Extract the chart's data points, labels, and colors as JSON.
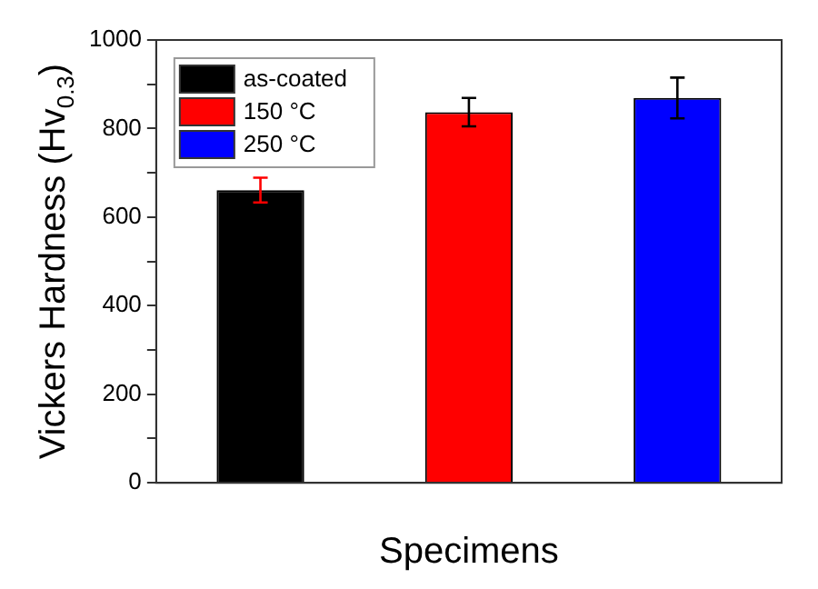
{
  "chart_data": {
    "type": "bar",
    "xlabel": "Specimens",
    "ylabel": "Vickers Hardness (Hv$_{0.3}$)",
    "categories": [
      null,
      null,
      null
    ],
    "series": [
      {
        "name": "as-coated",
        "color": "#000000",
        "values": [
          661,
          null,
          null
        ],
        "errors": [
          28,
          null,
          null
        ]
      },
      {
        "name": "150 °C",
        "color": "#ff0000",
        "values": [
          null,
          837,
          null
        ],
        "errors": [
          null,
          32,
          null
        ]
      },
      {
        "name": "250 °C",
        "color": "#0000ff",
        "values": [
          null,
          null,
          869
        ],
        "errors": [
          null,
          null,
          46
        ]
      }
    ],
    "ylim": [
      0,
      1000
    ],
    "yticks": [
      0,
      {
        "value": 100,
        "label": null
      },
      200,
      {
        "value": 300,
        "label": null
      },
      400,
      {
        "value": 500,
        "label": null
      },
      600,
      {
        "value": 700,
        "label": null
      },
      800,
      {
        "value": 900,
        "label": null
      },
      1000
    ],
    "grid": false,
    "legend": "top left"
  }
}
